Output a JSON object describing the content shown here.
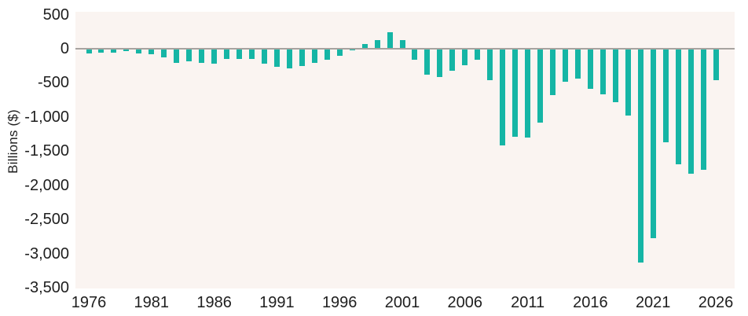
{
  "chart_data": {
    "type": "bar",
    "title": "",
    "xlabel": "",
    "ylabel": "Billions ($)",
    "years": [
      1976,
      1977,
      1978,
      1979,
      1980,
      1981,
      1982,
      1983,
      1984,
      1985,
      1986,
      1987,
      1988,
      1989,
      1990,
      1991,
      1992,
      1993,
      1994,
      1995,
      1996,
      1997,
      1998,
      1999,
      2000,
      2001,
      2002,
      2003,
      2004,
      2005,
      2006,
      2007,
      2008,
      2009,
      2010,
      2011,
      2012,
      2013,
      2014,
      2015,
      2016,
      2017,
      2018,
      2019,
      2020,
      2021,
      2022,
      2023,
      2024,
      2025,
      2026
    ],
    "values": [
      -73.7,
      -53.7,
      -59.2,
      -40.7,
      -73.8,
      -79.0,
      -128.0,
      -207.8,
      -185.4,
      -212.3,
      -221.2,
      -149.7,
      -155.2,
      -152.6,
      -221.0,
      -269.2,
      -290.3,
      -255.1,
      -203.2,
      -164.0,
      -107.4,
      -21.9,
      69.3,
      125.6,
      236.2,
      128.2,
      -157.8,
      -377.6,
      -412.7,
      -318.3,
      -248.2,
      -160.7,
      -458.6,
      -1412.7,
      -1294.4,
      -1299.6,
      -1087.0,
      -679.8,
      -484.8,
      -441.9,
      -584.7,
      -665.4,
      -779.0,
      -984.4,
      -3131.9,
      -2775.3,
      -1375.4,
      -1693.5,
      -1833.8,
      -1775.0,
      -465.0
    ],
    "ylim": [
      -3500,
      500
    ],
    "yticks": [
      500,
      0,
      -500,
      -1000,
      -1500,
      -2000,
      -2500,
      -3000,
      -3500
    ],
    "ytick_labels": [
      "500",
      "0",
      "-500",
      "-1,000",
      "-1,500",
      "-2,000",
      "-2,500",
      "-3,000",
      "-3,500"
    ],
    "xticks": [
      1976,
      1981,
      1986,
      1991,
      1996,
      2001,
      2006,
      2011,
      2016,
      2021,
      2026
    ],
    "grid": false,
    "legend": "none",
    "bar_color": "#15b5a5",
    "plot_background": "#faf4f1",
    "zero_line_color": "#a7a3a0",
    "text_color": "#1e1e1e"
  }
}
